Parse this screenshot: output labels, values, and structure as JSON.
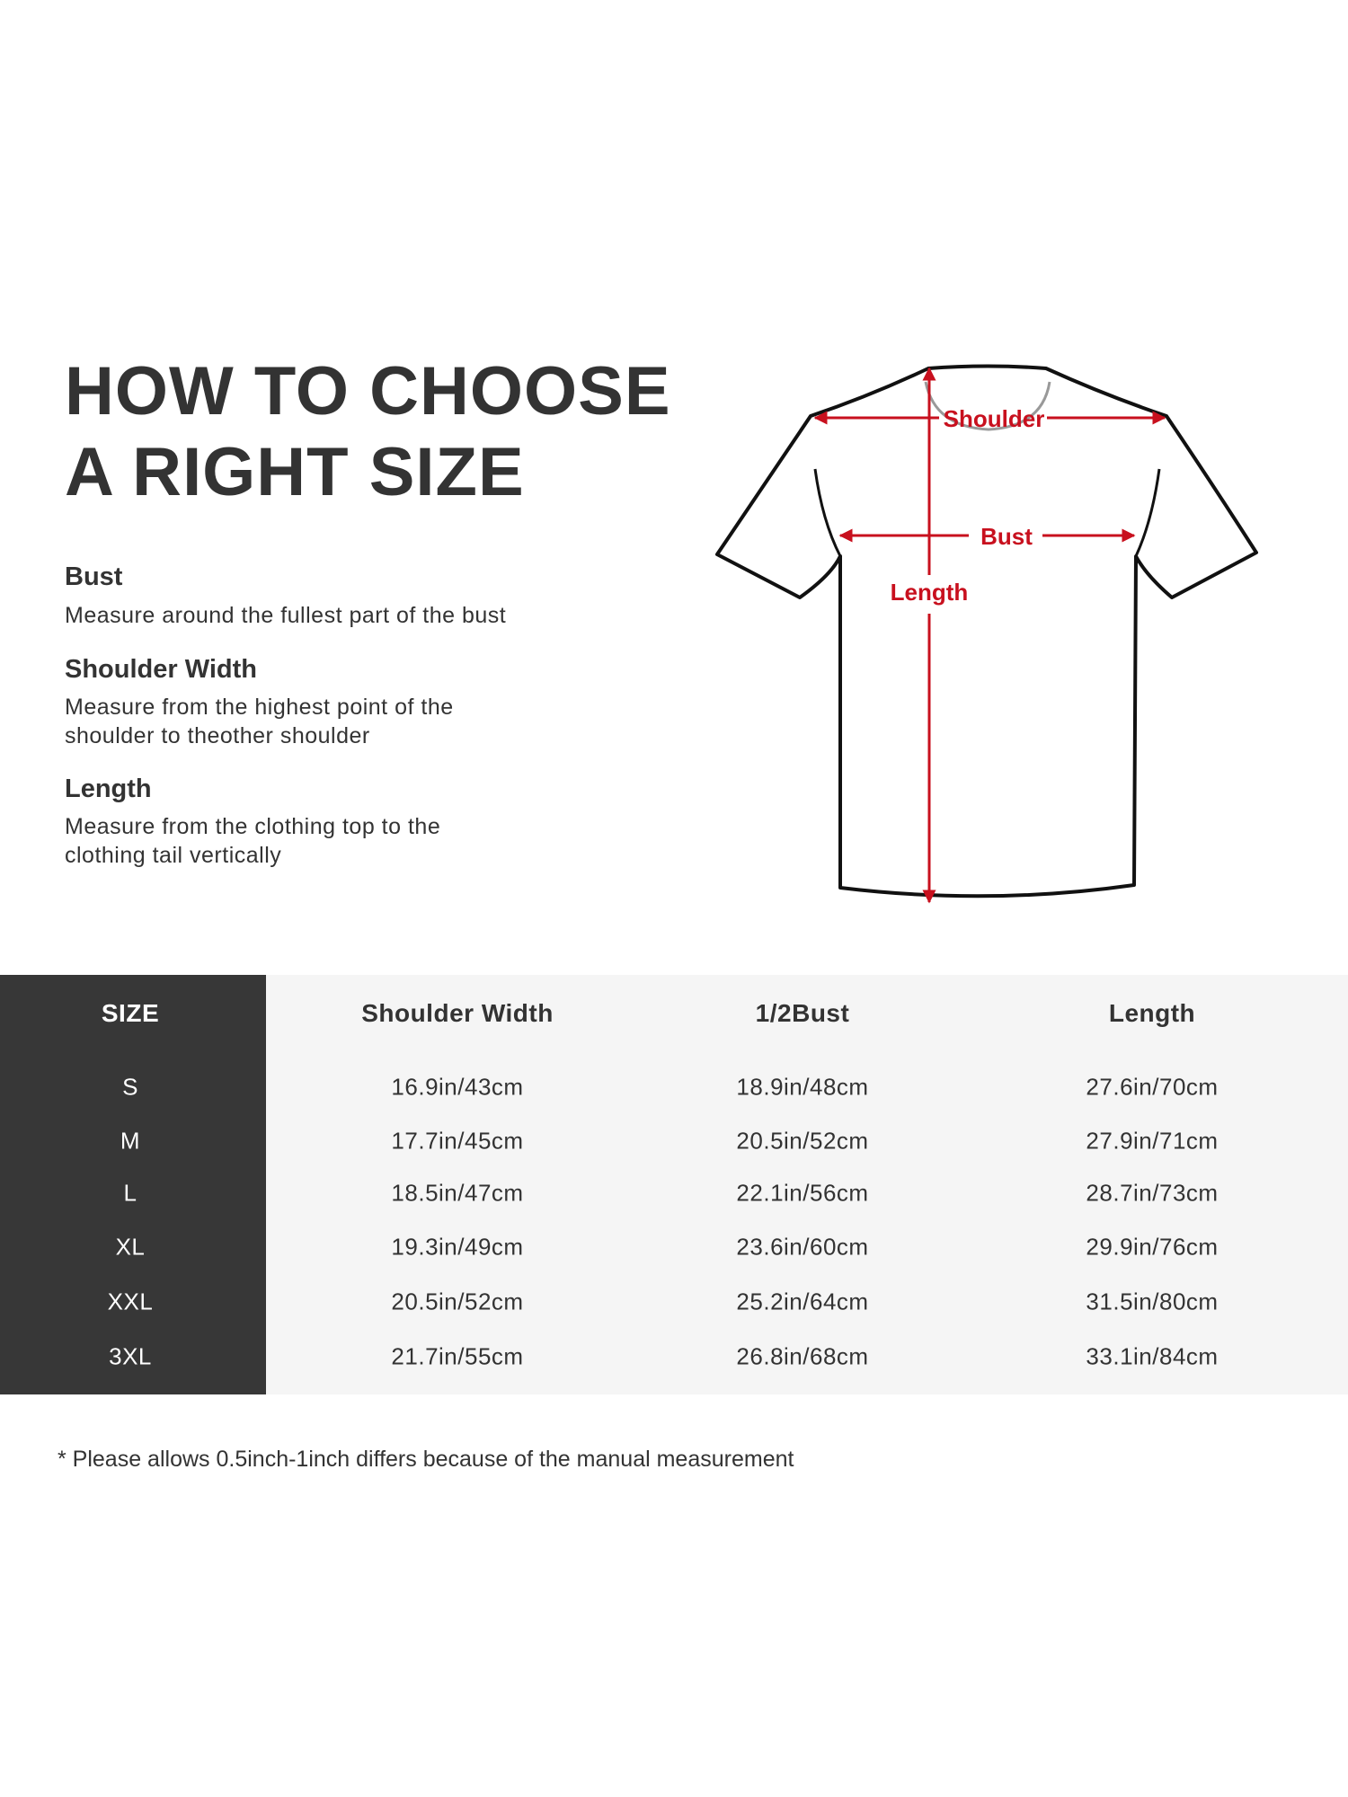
{
  "title": {
    "line1": "HOW TO CHOOSE",
    "line2": "A RIGHT SIZE"
  },
  "guide": [
    {
      "heading": "Bust",
      "lines": [
        "Measure around the fullest part of the bust"
      ]
    },
    {
      "heading": "Shoulder Width",
      "lines": [
        "Measure from the highest point of the",
        "shoulder to theother shoulder"
      ]
    },
    {
      "heading": "Length",
      "lines": [
        "Measure from the clothing top to the",
        "clothing tail vertically"
      ]
    }
  ],
  "diagram": {
    "shoulder_label": "Shoulder",
    "bust_label": "Bust",
    "length_label": "Length",
    "arrow_color": "#c8101e"
  },
  "table": {
    "headers": [
      "SIZE",
      "Shoulder Width",
      "1/2Bust",
      "Length"
    ],
    "rows": [
      [
        "S",
        "16.9in/43cm",
        "18.9in/48cm",
        "27.6in/70cm"
      ],
      [
        "M",
        "17.7in/45cm",
        "20.5in/52cm",
        "27.9in/71cm"
      ],
      [
        "L",
        "18.5in/47cm",
        "22.1in/56cm",
        "28.7in/73cm"
      ],
      [
        "XL",
        "19.3in/49cm",
        "23.6in/60cm",
        "29.9in/76cm"
      ],
      [
        "XXL",
        "20.5in/52cm",
        "25.2in/64cm",
        "31.5in/80cm"
      ],
      [
        "3XL",
        "21.7in/55cm",
        "26.8in/68cm",
        "33.1in/84cm"
      ]
    ]
  },
  "footnote": "* Please allows 0.5inch-1inch differs because of the  manual measurement"
}
